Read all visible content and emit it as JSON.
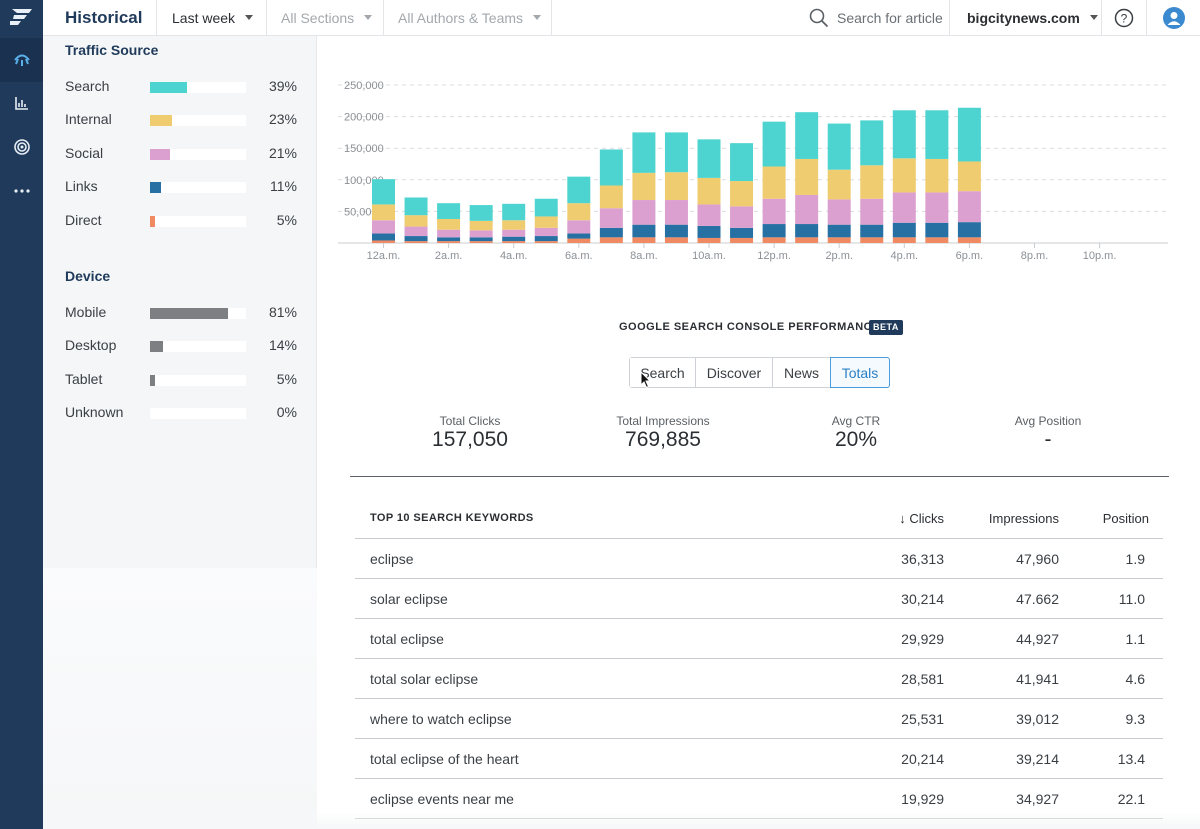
{
  "topbar": {
    "title": "Historical",
    "period": "Last week",
    "section": "All Sections",
    "authors": "All Authors & Teams",
    "search_placeholder": "Search for article",
    "site": "bigcitynews.com"
  },
  "traffic_source": {
    "title": "Traffic Source",
    "items": [
      {
        "label": "Search",
        "value": 39,
        "pct": "39%",
        "color": "#4dd4d0"
      },
      {
        "label": "Internal",
        "value": 23,
        "pct": "23%",
        "color": "#f0cc70"
      },
      {
        "label": "Social",
        "value": 21,
        "pct": "21%",
        "color": "#dba0cf"
      },
      {
        "label": "Links",
        "value": 11,
        "pct": "11%",
        "color": "#2770a3"
      },
      {
        "label": "Direct",
        "value": 5,
        "pct": "5%",
        "color": "#f08a62"
      }
    ]
  },
  "device": {
    "title": "Device",
    "items": [
      {
        "label": "Mobile",
        "value": 81,
        "pct": "81%",
        "color": "#7d7f82"
      },
      {
        "label": "Desktop",
        "value": 14,
        "pct": "14%",
        "color": "#7d7f82"
      },
      {
        "label": "Tablet",
        "value": 5,
        "pct": "5%",
        "color": "#7d7f82"
      },
      {
        "label": "Unknown",
        "value": 0,
        "pct": "0%",
        "color": "#7d7f82"
      }
    ]
  },
  "chart_data": {
    "type": "bar",
    "stacked": true,
    "title": "",
    "xlabel": "",
    "ylabel": "",
    "ylim": [
      0,
      250000
    ],
    "yticks": [
      "250,000",
      "200,000",
      "150,000",
      "100,000",
      "50,000"
    ],
    "ytick_values": [
      250000,
      200000,
      150000,
      100000,
      50000
    ],
    "xticks": [
      "12a.m.",
      "2a.m.",
      "4a.m.",
      "6a.m.",
      "8a.m.",
      "10a.m.",
      "12p.m.",
      "2p.m.",
      "4p.m.",
      "6p.m.",
      "8p.m.",
      "10p.m."
    ],
    "categories": [
      "12a.m.",
      "1a.m.",
      "2a.m.",
      "3a.m.",
      "4a.m.",
      "5a.m.",
      "6a.m.",
      "7a.m.",
      "8a.m.",
      "9a.m.",
      "10a.m.",
      "11a.m.",
      "12p.m.",
      "1p.m.",
      "2p.m.",
      "3p.m.",
      "4p.m.",
      "5p.m.",
      "6p.m.",
      "7p.m.",
      "8p.m.",
      "9p.m.",
      "10p.m.",
      "11p.m."
    ],
    "series": [
      {
        "name": "Direct",
        "color": "#f08a62",
        "values": [
          4000,
          3000,
          3000,
          3000,
          3000,
          3000,
          7000,
          9000,
          9000,
          9000,
          8000,
          8000,
          9000,
          9000,
          9000,
          9000,
          9000,
          9000,
          9000,
          0,
          0,
          0,
          0,
          0
        ]
      },
      {
        "name": "Links",
        "color": "#2770a3",
        "values": [
          11000,
          8000,
          6000,
          6000,
          7000,
          8000,
          8000,
          15000,
          20000,
          20000,
          19000,
          16000,
          21000,
          21000,
          20000,
          20000,
          23000,
          23000,
          24000,
          0,
          0,
          0,
          0,
          0
        ]
      },
      {
        "name": "Social",
        "color": "#dba0cf",
        "values": [
          21000,
          15000,
          12000,
          11000,
          11000,
          13000,
          21000,
          31000,
          39000,
          39000,
          34000,
          34000,
          40000,
          46000,
          40000,
          41000,
          48000,
          48000,
          49000,
          0,
          0,
          0,
          0,
          0
        ]
      },
      {
        "name": "Internal",
        "color": "#f0cc70",
        "values": [
          25000,
          18000,
          17000,
          15000,
          15000,
          18000,
          27000,
          36000,
          43000,
          44000,
          42000,
          40000,
          51000,
          57000,
          47000,
          53000,
          54000,
          53000,
          47000,
          0,
          0,
          0,
          0,
          0
        ]
      },
      {
        "name": "Search",
        "color": "#4dd4d0",
        "values": [
          40000,
          28000,
          25000,
          25000,
          26000,
          28000,
          42000,
          57000,
          64000,
          63000,
          61000,
          60000,
          71000,
          74000,
          73000,
          71000,
          76000,
          77000,
          85000,
          0,
          0,
          0,
          0,
          0
        ]
      }
    ]
  },
  "gsc": {
    "title": "GOOGLE SEARCH CONSOLE PERFORMANCE",
    "badge": "BETA",
    "tabs": [
      "Search",
      "Discover",
      "News",
      "Totals"
    ],
    "active_tab": "Totals",
    "kpis": [
      {
        "label": "Total Clicks",
        "value": "157,050"
      },
      {
        "label": "Total Impressions",
        "value": "769,885"
      },
      {
        "label": "Avg CTR",
        "value": "20%"
      },
      {
        "label": "Avg Position",
        "value": "-"
      }
    ]
  },
  "keywords": {
    "title": "TOP 10 SEARCH KEYWORDS",
    "columns": {
      "clicks": "↓ Clicks",
      "impressions": "Impressions",
      "position": "Position"
    },
    "rows": [
      {
        "keyword": "eclipse",
        "clicks": "36,313",
        "impressions": "47,960",
        "position": "1.9"
      },
      {
        "keyword": "solar eclipse",
        "clicks": "30,214",
        "impressions": "47.662",
        "position": "11.0"
      },
      {
        "keyword": "total eclipse",
        "clicks": "29,929",
        "impressions": "44,927",
        "position": "1.1"
      },
      {
        "keyword": "total solar eclipse",
        "clicks": "28,581",
        "impressions": "41,941",
        "position": "4.6"
      },
      {
        "keyword": "where to watch eclipse",
        "clicks": "25,531",
        "impressions": "39,012",
        "position": "9.3"
      },
      {
        "keyword": "total eclipse of the heart",
        "clicks": "20,214",
        "impressions": "39,214",
        "position": "13.4"
      },
      {
        "keyword": "eclipse events near me",
        "clicks": "19,929",
        "impressions": "34,927",
        "position": "22.1"
      }
    ]
  }
}
